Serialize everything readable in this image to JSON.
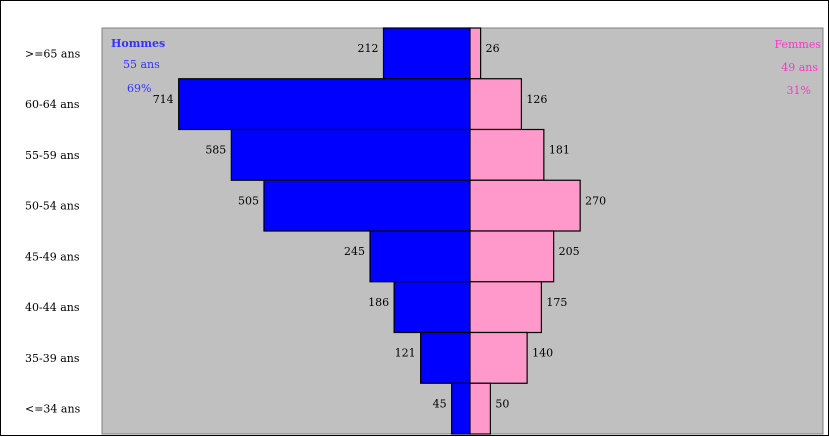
{
  "chart_data": {
    "type": "bar",
    "orientation": "horizontal-pyramid",
    "categories": [
      ">=65 ans",
      "60-64 ans",
      "55-59 ans",
      "50-54 ans",
      "45-49 ans",
      "40-44 ans",
      "35-39 ans",
      "<=34 ans"
    ],
    "series": [
      {
        "name": "Hommes",
        "values": [
          212,
          714,
          585,
          505,
          245,
          186,
          121,
          45
        ],
        "color": "#0000ff",
        "side": "left"
      },
      {
        "name": "Femmes",
        "values": [
          26,
          126,
          181,
          270,
          205,
          175,
          140,
          50
        ],
        "color": "#ff99cc",
        "side": "right"
      }
    ],
    "legend": {
      "hommes": {
        "name": "Hommes",
        "age": "55 ans",
        "pct": "69%",
        "color": "#3333ff",
        "placement": "top-left"
      },
      "femmes": {
        "name": "Femmes",
        "age": "49 ans",
        "pct": "31%",
        "color": "#ff33cc",
        "placement": "top-right"
      }
    },
    "xlim": [
      -780,
      780
    ],
    "plot_background": "#c0c0c0",
    "grid": false
  }
}
